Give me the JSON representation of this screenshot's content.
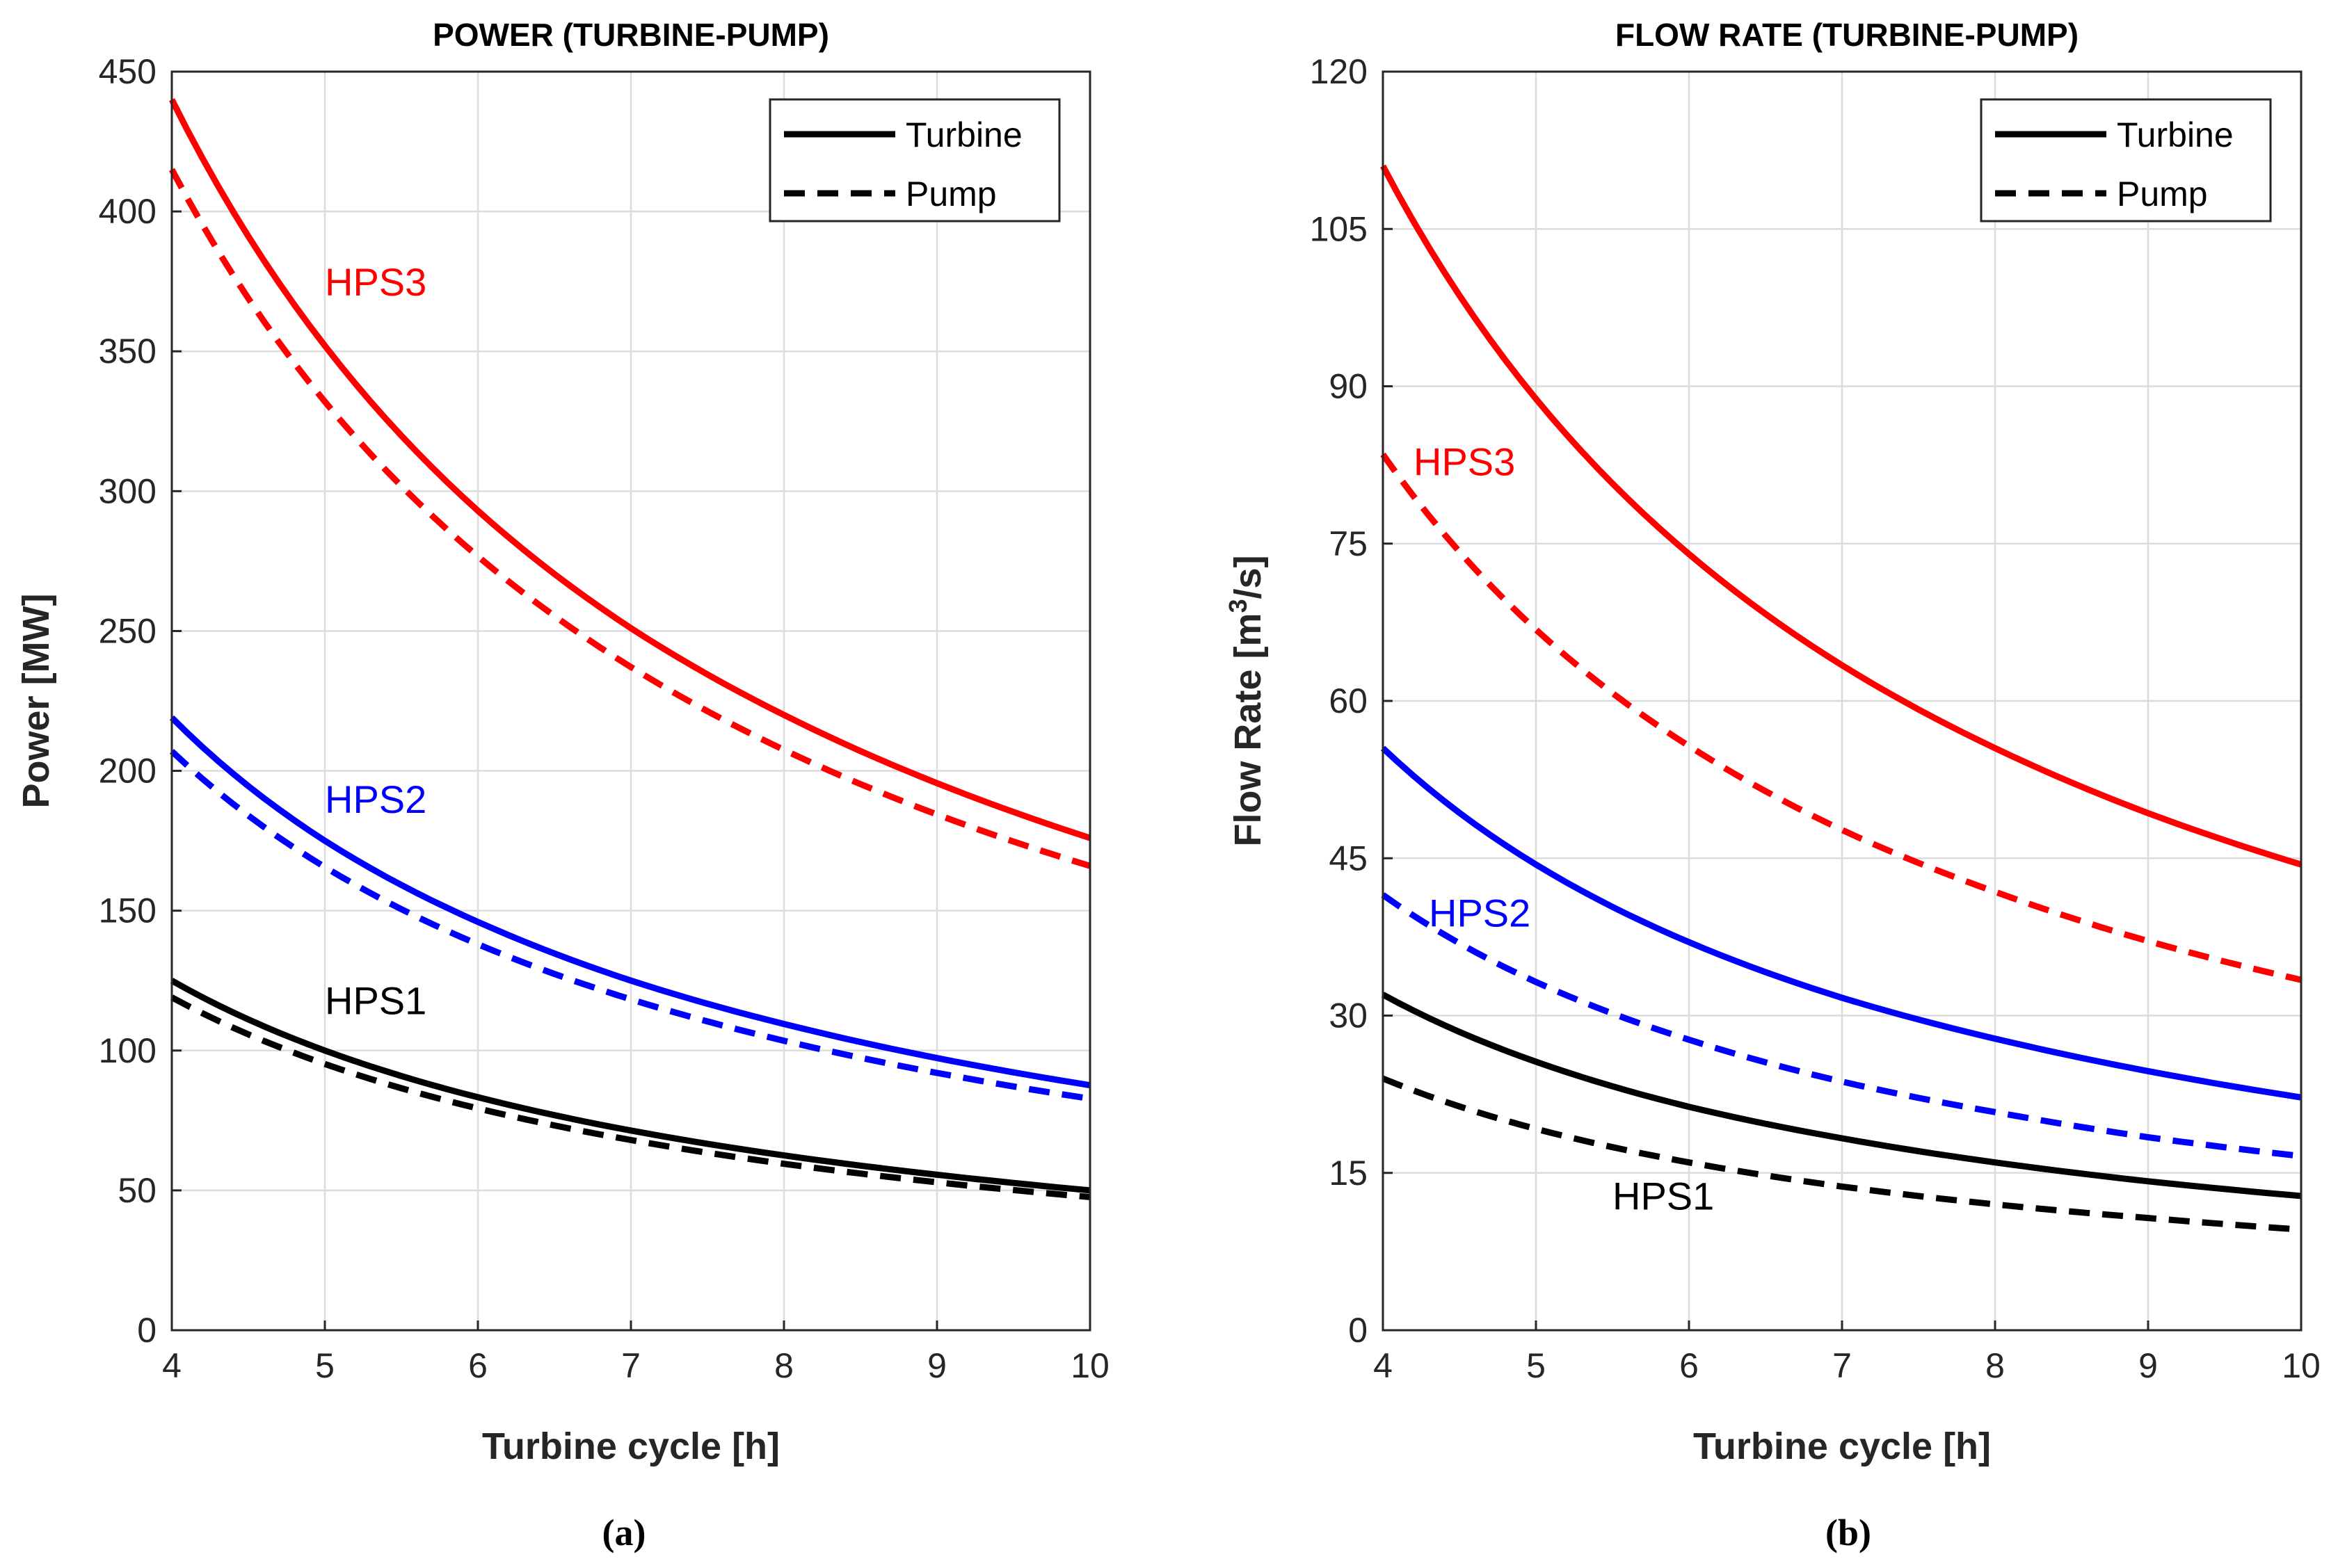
{
  "chart_data": [
    {
      "id": "a",
      "type": "line",
      "title": "POWER (TURBINE-PUMP)",
      "xlabel": "Turbine cycle [h]",
      "ylabel": "Power [MW]",
      "xlim": [
        4,
        10
      ],
      "ylim": [
        0,
        450
      ],
      "xticks": [
        4,
        5,
        6,
        7,
        8,
        9,
        10
      ],
      "yticks": [
        0,
        50,
        100,
        150,
        200,
        250,
        300,
        350,
        400,
        450
      ],
      "grid": true,
      "legend": {
        "placement": "top-right",
        "entries": [
          "Turbine",
          "Pump"
        ]
      },
      "caption": "(a)",
      "x": [
        4,
        5,
        6,
        7,
        8,
        9,
        10
      ],
      "series": [
        {
          "name": "HPS1 Turbine",
          "style": "solid",
          "color": "#000000",
          "values": [
            125,
            100,
            83.3,
            71.4,
            62.5,
            55.6,
            50
          ]
        },
        {
          "name": "HPS1 Pump",
          "style": "dashed",
          "color": "#000000",
          "values": [
            119,
            95.2,
            79.3,
            68,
            59.5,
            52.9,
            47.6
          ]
        },
        {
          "name": "HPS2 Turbine",
          "style": "solid",
          "color": "#0000ff",
          "values": [
            219,
            175,
            146,
            125,
            109.5,
            97.3,
            87.6
          ]
        },
        {
          "name": "HPS2 Pump",
          "style": "dashed",
          "color": "#0000ff",
          "values": [
            207,
            165.6,
            138,
            118.3,
            103.5,
            92,
            82.8
          ]
        },
        {
          "name": "HPS3 Turbine",
          "style": "solid",
          "color": "#ff0000",
          "values": [
            440,
            352,
            293,
            251,
            220,
            195.6,
            176
          ]
        },
        {
          "name": "HPS3 Pump",
          "style": "dashed",
          "color": "#ff0000",
          "values": [
            415,
            332,
            276.7,
            237.1,
            207.5,
            184.4,
            166
          ]
        }
      ],
      "annotations": [
        {
          "text": "HPS3",
          "color": "#ff0000",
          "x": 5,
          "y": 370
        },
        {
          "text": "HPS2",
          "color": "#0000ff",
          "x": 5,
          "y": 185
        },
        {
          "text": "HPS1",
          "color": "#000000",
          "x": 5,
          "y": 113
        }
      ]
    },
    {
      "id": "b",
      "type": "line",
      "title": "FLOW RATE (TURBINE-PUMP)",
      "xlabel": "Turbine cycle [h]",
      "ylabel": "Flow Rate [m",
      "ylabel_sup": "3",
      "ylabel_tail": "/s]",
      "xlim": [
        4,
        10
      ],
      "ylim": [
        0,
        120
      ],
      "xticks": [
        4,
        5,
        6,
        7,
        8,
        9,
        10
      ],
      "yticks": [
        0,
        15,
        30,
        45,
        60,
        75,
        90,
        105,
        120
      ],
      "grid": true,
      "legend": {
        "placement": "top-right",
        "entries": [
          "Turbine",
          "Pump"
        ]
      },
      "caption": "(b)",
      "x": [
        4,
        5,
        6,
        7,
        8,
        9,
        10
      ],
      "series": [
        {
          "name": "HPS1 Turbine",
          "style": "solid",
          "color": "#000000",
          "values": [
            32,
            25.6,
            21.3,
            18.3,
            16,
            14.2,
            12.8
          ]
        },
        {
          "name": "HPS1 Pump",
          "style": "dashed",
          "color": "#000000",
          "values": [
            24,
            19.2,
            16,
            13.7,
            12,
            10.7,
            9.6
          ]
        },
        {
          "name": "HPS2 Turbine",
          "style": "solid",
          "color": "#0000ff",
          "values": [
            55.5,
            44.4,
            37,
            31.7,
            27.8,
            24.7,
            22.2
          ]
        },
        {
          "name": "HPS2 Pump",
          "style": "dashed",
          "color": "#0000ff",
          "values": [
            41.5,
            33.2,
            27.7,
            23.7,
            20.8,
            18.4,
            16.6
          ]
        },
        {
          "name": "HPS3 Turbine",
          "style": "solid",
          "color": "#ff0000",
          "values": [
            111,
            88.8,
            74,
            63.4,
            55.5,
            49.3,
            44.4
          ]
        },
        {
          "name": "HPS3 Pump",
          "style": "dashed",
          "color": "#ff0000",
          "values": [
            83.5,
            66.8,
            55.7,
            47.7,
            41.8,
            37.1,
            33.4
          ]
        }
      ],
      "annotations": [
        {
          "text": "HPS3",
          "color": "#ff0000",
          "x": 4.2,
          "y": 81.5
        },
        {
          "text": "HPS2",
          "color": "#0000ff",
          "x": 4.3,
          "y": 38.5
        },
        {
          "text": "HPS1",
          "color": "#000000",
          "x": 5.5,
          "y": 11.5
        }
      ]
    }
  ]
}
